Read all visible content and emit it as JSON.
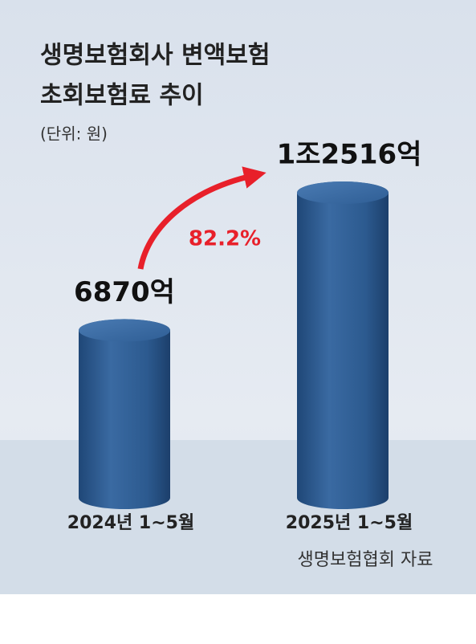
{
  "chart_data": {
    "type": "bar",
    "title": [
      "생명보험회사 변액보험",
      "초회보험료 추이"
    ],
    "subtitle": "(단위: 원)",
    "categories": [
      "2024년 1~5월",
      "2025년 1~5월"
    ],
    "values": [
      6870,
      12516
    ],
    "value_labels": [
      "6870억",
      "1조2516억"
    ],
    "color": "#2f5e95",
    "annotation": {
      "text": "82.2%",
      "color": "#e8202a"
    },
    "source": "생명보험협회 자료"
  }
}
